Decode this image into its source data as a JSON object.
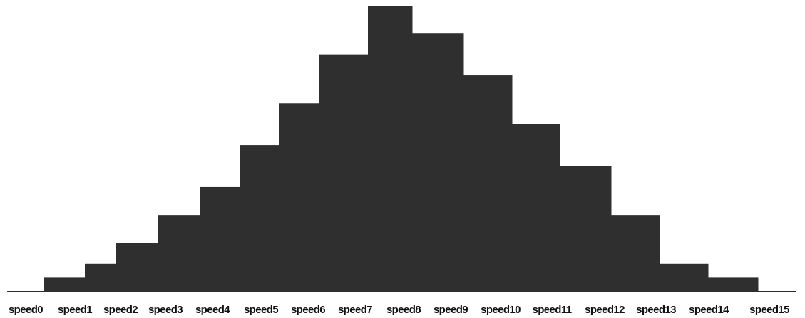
{
  "chart_data": {
    "type": "bar",
    "categories": [
      "speed0",
      "speed1",
      "speed2",
      "speed3",
      "speed4",
      "speed5",
      "speed6",
      "speed7",
      "speed8",
      "speed9",
      "speed10",
      "speed11",
      "speed12",
      "speed13",
      "speed14",
      "speed15"
    ],
    "values": [
      2,
      4,
      7,
      11,
      15,
      21,
      27,
      34,
      41,
      37,
      31,
      24,
      18,
      11,
      4,
      2
    ],
    "ylim": [
      0,
      41
    ],
    "grid": false,
    "bar_color": "#2f2f2f"
  }
}
